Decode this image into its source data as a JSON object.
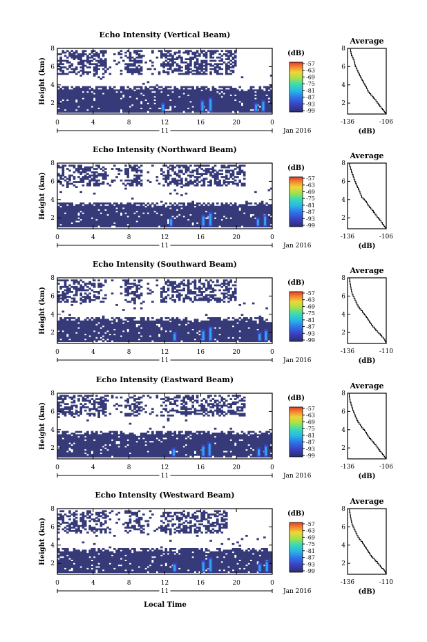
{
  "figure": {
    "xlabel": "Local Time",
    "date_label": "Jan 2016",
    "day_label": "11",
    "cbar_unit": "(dB)",
    "avg_title": "Average",
    "avg_xlabel": "(dB)",
    "main_ylabel": "Height (km)"
  },
  "chart_data": [
    {
      "type": "heatmap",
      "title": "Echo Intensity (Vertical Beam)",
      "xlabel": "Local Time",
      "ylabel": "Height (km)",
      "xticks": [
        "0",
        "4",
        "8",
        "12",
        "16",
        "20",
        "0"
      ],
      "xlim": [
        0,
        24
      ],
      "yticks": [
        "2",
        "4",
        "6",
        "8"
      ],
      "ylim": [
        0.8,
        8
      ],
      "colorbar": {
        "label": "(dB)",
        "ticks": [
          "-57",
          "-63",
          "-69",
          "-75",
          "-81",
          "-87",
          "-93",
          "-99"
        ],
        "range": [
          -99,
          -57
        ]
      },
      "upper_layer": {
        "bottom_km": 5.2,
        "top_km": 7.9,
        "density": 0.55,
        "x_end_h": 20
      },
      "lower_layer": {
        "bottom_km": 1.0,
        "top_km": 3.8
      },
      "hot_spots_h": [
        11.8,
        16.2,
        17.1,
        22.2,
        23.0
      ]
    },
    {
      "type": "line",
      "title": "Average",
      "xlabel": "(dB)",
      "xticks": [
        "-136",
        "-106"
      ],
      "xlim": [
        -136,
        -106
      ],
      "yticks": [
        "2",
        "4",
        "6",
        "8"
      ],
      "ylim": [
        0.8,
        8
      ],
      "series": [
        {
          "x": [
            -134,
            -133,
            -131,
            -130,
            -128,
            -126,
            -124,
            -122,
            -120,
            -117,
            -114,
            -111,
            -108,
            -106
          ],
          "y": [
            7.9,
            7.2,
            6.6,
            6.0,
            5.4,
            4.8,
            4.3,
            3.8,
            3.2,
            2.7,
            2.2,
            1.6,
            1.1,
            0.8
          ]
        }
      ]
    },
    {
      "type": "heatmap",
      "title": "Echo Intensity (Northward Beam)",
      "xlabel": "Local Time",
      "ylabel": "Height (km)",
      "xticks": [
        "0",
        "4",
        "8",
        "12",
        "16",
        "20",
        "0"
      ],
      "xlim": [
        0,
        24
      ],
      "yticks": [
        "2",
        "4",
        "6",
        "8"
      ],
      "ylim": [
        0.8,
        8
      ],
      "colorbar": {
        "label": "(dB)",
        "ticks": [
          "-57",
          "-63",
          "-69",
          "-75",
          "-81",
          "-87",
          "-93",
          "-99"
        ],
        "range": [
          -99,
          -57
        ]
      },
      "upper_layer": {
        "bottom_km": 5.4,
        "top_km": 7.9,
        "density": 0.5,
        "x_end_h": 21
      },
      "lower_layer": {
        "bottom_km": 1.0,
        "top_km": 3.7
      },
      "hot_spots_h": [
        12.7,
        16.3,
        17.1,
        22.4,
        23.2
      ]
    },
    {
      "type": "line",
      "title": "Average",
      "xlabel": "(dB)",
      "xticks": [
        "-136",
        "-106"
      ],
      "xlim": [
        -136,
        -106
      ],
      "series": [
        {
          "x": [
            -135,
            -133,
            -131,
            -129,
            -127,
            -125,
            -122,
            -120,
            -117,
            -114,
            -111,
            -108,
            -106
          ],
          "y": [
            7.9,
            7.0,
            6.2,
            5.5,
            4.9,
            4.2,
            3.8,
            3.3,
            2.8,
            2.2,
            1.7,
            1.1,
            0.8
          ]
        }
      ]
    },
    {
      "type": "heatmap",
      "title": "Echo Intensity (Southward Beam)",
      "xlabel": "Local Time",
      "ylabel": "Height (km)",
      "xticks": [
        "0",
        "4",
        "8",
        "12",
        "16",
        "20",
        "0"
      ],
      "xlim": [
        0,
        24
      ],
      "yticks": [
        "2",
        "4",
        "6",
        "8"
      ],
      "ylim": [
        0.8,
        8
      ],
      "colorbar": {
        "label": "(dB)",
        "ticks": [
          "-57",
          "-63",
          "-69",
          "-75",
          "-81",
          "-87",
          "-93",
          "-99"
        ],
        "range": [
          -99,
          -57
        ]
      },
      "upper_layer": {
        "bottom_km": 5.3,
        "top_km": 7.9,
        "density": 0.5,
        "x_end_h": 20
      },
      "lower_layer": {
        "bottom_km": 1.0,
        "top_km": 3.6
      },
      "hot_spots_h": [
        13.1,
        16.3,
        17.1,
        22.6,
        23.3
      ]
    },
    {
      "type": "line",
      "title": "Average",
      "xlabel": "(dB)",
      "xticks": [
        "-136",
        "-110"
      ],
      "xlim": [
        -136,
        -110
      ],
      "series": [
        {
          "x": [
            -135,
            -134,
            -133,
            -131,
            -129,
            -126,
            -124,
            -122,
            -120,
            -117,
            -114,
            -111,
            -110
          ],
          "y": [
            7.9,
            7.0,
            6.2,
            5.5,
            4.8,
            4.2,
            3.8,
            3.3,
            2.8,
            2.2,
            1.7,
            1.1,
            0.8
          ]
        }
      ]
    },
    {
      "type": "heatmap",
      "title": "Echo Intensity (Eastward Beam)",
      "xlabel": "Local Time",
      "ylabel": "Height (km)",
      "xticks": [
        "0",
        "4",
        "8",
        "12",
        "16",
        "20",
        "0"
      ],
      "xlim": [
        0,
        24
      ],
      "yticks": [
        "2",
        "4",
        "6",
        "8"
      ],
      "ylim": [
        0.8,
        8
      ],
      "colorbar": {
        "label": "(dB)",
        "ticks": [
          "-57",
          "-63",
          "-69",
          "-75",
          "-81",
          "-87",
          "-93",
          "-99"
        ],
        "range": [
          -99,
          -57
        ]
      },
      "upper_layer": {
        "bottom_km": 5.4,
        "top_km": 7.9,
        "density": 0.5,
        "x_end_h": 21
      },
      "lower_layer": {
        "bottom_km": 1.0,
        "top_km": 3.8
      },
      "hot_spots_h": [
        13.0,
        16.3,
        17.0,
        22.5,
        23.3
      ]
    },
    {
      "type": "line",
      "title": "Average",
      "xlabel": "(dB)",
      "xticks": [
        "-136",
        "-106"
      ],
      "xlim": [
        -136,
        -106
      ],
      "series": [
        {
          "x": [
            -135,
            -134,
            -132,
            -130,
            -128,
            -125,
            -122,
            -120,
            -117,
            -114,
            -111,
            -108,
            -106
          ],
          "y": [
            7.9,
            7.0,
            6.1,
            5.4,
            4.8,
            4.2,
            3.7,
            3.2,
            2.7,
            2.2,
            1.6,
            1.1,
            0.8
          ]
        }
      ]
    },
    {
      "type": "heatmap",
      "title": "Echo Intensity (Westward Beam)",
      "xlabel": "Local Time",
      "ylabel": "Height (km)",
      "xticks": [
        "0",
        "4",
        "8",
        "12",
        "16",
        "20",
        "0"
      ],
      "xlim": [
        0,
        24
      ],
      "yticks": [
        "2",
        "4",
        "6",
        "8"
      ],
      "ylim": [
        0.8,
        8
      ],
      "colorbar": {
        "label": "(dB)",
        "ticks": [
          "-57",
          "-63",
          "-69",
          "-75",
          "-81",
          "-87",
          "-93",
          "-99"
        ],
        "range": [
          -99,
          -57
        ]
      },
      "upper_layer": {
        "bottom_km": 5.3,
        "top_km": 7.9,
        "density": 0.5,
        "x_end_h": 19
      },
      "lower_layer": {
        "bottom_km": 1.0,
        "top_km": 3.6
      },
      "hot_spots_h": [
        13.1,
        16.3,
        17.1,
        22.6,
        23.4
      ]
    },
    {
      "type": "line",
      "title": "Average",
      "xlabel": "(dB)",
      "xticks": [
        "-136",
        "-110"
      ],
      "xlim": [
        -136,
        -110
      ],
      "series": [
        {
          "x": [
            -135,
            -134,
            -133,
            -131,
            -129,
            -126,
            -124,
            -122,
            -120,
            -117,
            -114,
            -111,
            -110
          ],
          "y": [
            7.9,
            7.0,
            6.2,
            5.5,
            4.8,
            4.2,
            3.7,
            3.2,
            2.7,
            2.2,
            1.6,
            1.1,
            0.8
          ]
        }
      ]
    }
  ]
}
